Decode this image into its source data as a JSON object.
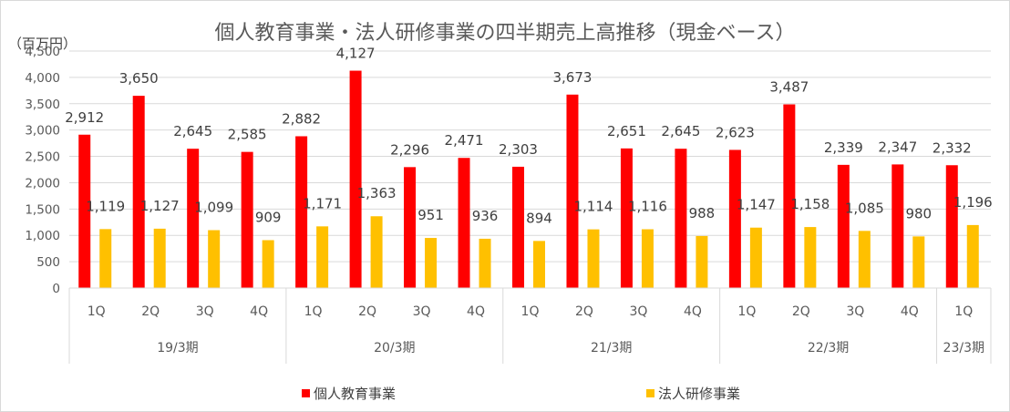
{
  "chart_data": {
    "type": "bar",
    "title": "個人教育事業・法人研修事業の四半期売上高推移（現金ベース）",
    "unit_label": "（百万円）",
    "ylim": [
      0,
      4500
    ],
    "y_ticks": [
      "0",
      "500",
      "1,000",
      "1,500",
      "2,000",
      "2,500",
      "3,000",
      "3,500",
      "4,000",
      "4,500"
    ],
    "grid": true,
    "legend_position": "bottom",
    "categories": [
      "1Q",
      "2Q",
      "3Q",
      "4Q",
      "1Q",
      "2Q",
      "3Q",
      "4Q",
      "1Q",
      "2Q",
      "3Q",
      "4Q",
      "1Q",
      "2Q",
      "3Q",
      "4Q",
      "1Q"
    ],
    "groups": [
      {
        "label": "19/3期",
        "count": 4
      },
      {
        "label": "20/3期",
        "count": 4
      },
      {
        "label": "21/3期",
        "count": 4
      },
      {
        "label": "22/3期",
        "count": 4
      },
      {
        "label": "23/3期",
        "count": 1
      }
    ],
    "series": [
      {
        "name": "個人教育事業",
        "color": "#ff0000",
        "values": [
          2912,
          3650,
          2645,
          2585,
          2882,
          4127,
          2296,
          2471,
          2303,
          3673,
          2651,
          2645,
          2623,
          3487,
          2339,
          2347,
          2332
        ],
        "labels": [
          "2,912",
          "3,650",
          "2,645",
          "2,585",
          "2,882",
          "4,127",
          "2,296",
          "2,471",
          "2,303",
          "3,673",
          "2,651",
          "2,645",
          "2,623",
          "3,487",
          "2,339",
          "2,347",
          "2,332"
        ]
      },
      {
        "name": "法人研修事業",
        "color": "#ffc000",
        "values": [
          1119,
          1127,
          1099,
          909,
          1171,
          1363,
          951,
          936,
          894,
          1114,
          1116,
          988,
          1147,
          1158,
          1085,
          980,
          1196
        ],
        "labels": [
          "1,119",
          "1,127",
          "1,099",
          "909",
          "1,171",
          "1,363",
          "951",
          "936",
          "894",
          "1,114",
          "1,116",
          "988",
          "1,147",
          "1,158",
          "1,085",
          "980",
          "1,196"
        ]
      }
    ]
  }
}
